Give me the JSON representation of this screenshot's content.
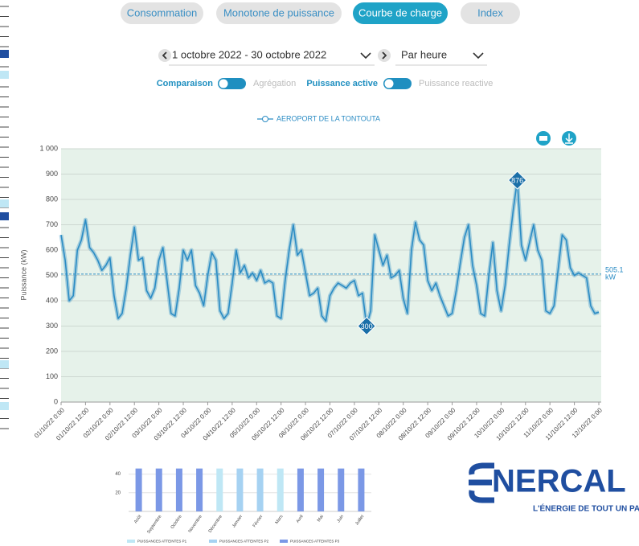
{
  "ui": {
    "tabs": [
      "Consommation",
      "Monotone de puissance",
      "Courbe de charge",
      "Index"
    ],
    "date_range": "1 octobre 2022 - 30 octobre 2022",
    "granularity": "Par heure",
    "toggles": [
      "Comparaison",
      "Agrégation",
      "Puissance active",
      "Puissance reactive"
    ]
  },
  "chart_data": [
    {
      "type": "line",
      "yaxis_label": "Puissance (kW)",
      "categories": [
        "01/10/22 0:00",
        null,
        null,
        null,
        null,
        null,
        "01/10/22 12:00",
        null,
        null,
        null,
        null,
        null,
        "02/10/22 0:00",
        null,
        null,
        null,
        null,
        null,
        "02/10/22 12:00",
        null,
        null,
        null,
        null,
        null,
        "03/10/22 0:00",
        null,
        null,
        null,
        null,
        null,
        "03/10/22 12:00",
        null,
        null,
        null,
        null,
        null,
        "04/10/22 0:00",
        null,
        null,
        null,
        null,
        null,
        "04/10/22 12:00",
        null,
        null,
        null,
        null,
        null,
        "05/10/22 0:00",
        null,
        null,
        null,
        null,
        null,
        "05/10/22 12:00",
        null,
        null,
        null,
        null,
        null,
        "06/10/22 0:00",
        null,
        null,
        null,
        null,
        null,
        "06/10/22 12:00",
        null,
        null,
        null,
        null,
        null,
        "07/10/22 0:00",
        null,
        null,
        null,
        null,
        null,
        "07/10/22 12:00",
        null,
        null,
        null,
        null,
        null,
        "08/10/22 0:00",
        null,
        null,
        null,
        null,
        null,
        "08/10/22 12:00",
        null,
        null,
        null,
        null,
        null,
        "09/10/22 0:00",
        null,
        null,
        null,
        null,
        null,
        "09/10/22 12:00",
        null,
        null,
        null,
        null,
        null,
        "10/10/22 0:00",
        null,
        null,
        null,
        null,
        null,
        "10/10/22 12:00",
        null,
        null,
        null,
        null,
        null,
        "11/10/22 0:00",
        null,
        null,
        null,
        null,
        null,
        "11/10/22 12:00",
        null,
        null,
        null,
        null,
        null,
        "12/10/22 0:00"
      ],
      "series": [
        {
          "name": "AEROPORT DE LA TONTOUTA",
          "color": "#2b8cc4",
          "values": [
            660,
            560,
            400,
            420,
            600,
            640,
            720,
            610,
            590,
            560,
            520,
            540,
            570,
            420,
            330,
            350,
            450,
            580,
            690,
            560,
            570,
            440,
            410,
            450,
            560,
            610,
            480,
            350,
            340,
            450,
            600,
            560,
            600,
            460,
            430,
            380,
            500,
            590,
            560,
            360,
            330,
            350,
            470,
            600,
            510,
            540,
            490,
            510,
            480,
            520,
            470,
            480,
            470,
            340,
            330,
            480,
            600,
            700,
            580,
            600,
            510,
            420,
            430,
            450,
            340,
            320,
            420,
            450,
            470,
            460,
            450,
            470,
            480,
            420,
            430,
            300,
            360,
            660,
            600,
            540,
            580,
            490,
            500,
            520,
            410,
            350,
            600,
            710,
            640,
            620,
            480,
            440,
            470,
            420,
            380,
            340,
            350,
            440,
            550,
            650,
            700,
            540,
            460,
            350,
            340,
            500,
            630,
            440,
            360,
            460,
            620,
            760,
            876,
            620,
            560,
            630,
            700,
            600,
            560,
            360,
            350,
            380,
            520,
            660,
            640,
            530,
            500,
            510,
            500,
            490,
            380,
            350,
            355
          ]
        }
      ],
      "ylim": [
        0,
        1000
      ],
      "yticks": [
        0,
        100,
        200,
        300,
        400,
        500,
        600,
        700,
        800,
        900,
        {
          "value": 1000,
          "label": "1 000"
        }
      ],
      "grid": true,
      "mean": 505.1,
      "mean_unit": "kW",
      "legend": "top"
    },
    {
      "type": "bar",
      "categories": [
        "Août",
        "Septembre",
        "Octobre",
        "Novembre",
        "Décembre",
        "Janvier",
        "Février",
        "Mars",
        "Avril",
        "Mai",
        "Juin",
        "Juillet"
      ],
      "series": [
        {
          "name": "PUISSANCES ATTEINTES P1",
          "color": "#bfe7f5",
          "values": [
            null,
            null,
            null,
            null,
            46,
            null,
            null,
            46,
            null,
            null,
            null,
            null
          ]
        },
        {
          "name": "PUISSANCES ATTEINTES P2",
          "color": "#a6d2f2",
          "values": [
            null,
            null,
            null,
            null,
            null,
            46,
            46,
            null,
            null,
            null,
            null,
            null
          ]
        },
        {
          "name": "PUISSANCES ATTEINTES P3",
          "color": "#7b98e6",
          "values": [
            46,
            46,
            46,
            46,
            null,
            null,
            null,
            null,
            46,
            46,
            46,
            46
          ]
        }
      ],
      "ylim": [
        0,
        50
      ],
      "yticks": [
        20,
        40
      ],
      "grid": true,
      "legend": "bottom"
    }
  ],
  "logo": {
    "name": "NERCAL",
    "tagline": "L'ÉNERGIE DE TOUT UN PA"
  }
}
